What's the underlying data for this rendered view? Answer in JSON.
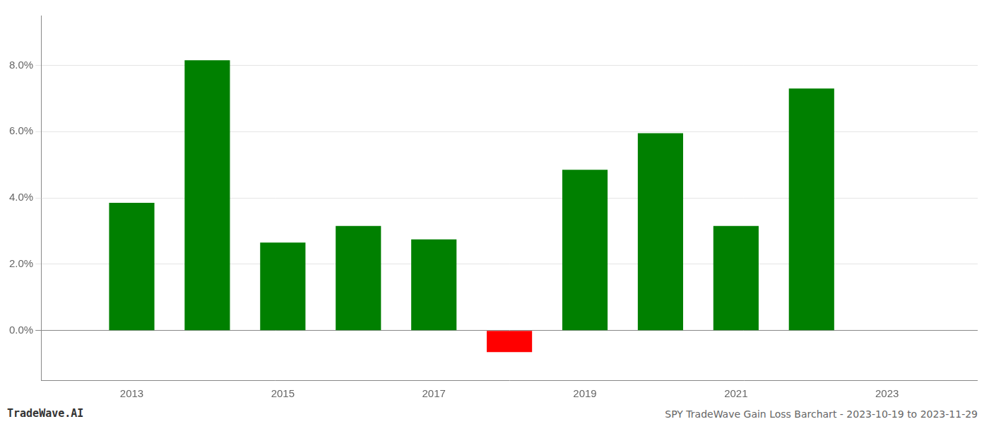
{
  "chart_data": {
    "type": "bar",
    "title": "SPY TradeWave Gain Loss Barchart - 2023-10-19 to 2023-11-29",
    "annotations": [
      "TradeWave.AI"
    ],
    "x": [
      2013,
      2014,
      2015,
      2016,
      2017,
      2018,
      2019,
      2020,
      2021,
      2022
    ],
    "values": [
      0.0385,
      0.0815,
      0.0265,
      0.0315,
      0.0275,
      -0.0065,
      0.0485,
      0.0595,
      0.0315,
      0.073
    ],
    "colors": [
      "#008000",
      "#008000",
      "#008000",
      "#008000",
      "#008000",
      "#ff0000",
      "#008000",
      "#008000",
      "#008000",
      "#008000"
    ],
    "xlim": [
      2011.8,
      2024.2
    ],
    "xticks": [
      2013,
      2015,
      2017,
      2019,
      2021,
      2023
    ],
    "ylim": [
      -0.015,
      0.095
    ],
    "yticks": [
      {
        "value": 0.0,
        "label": "0.0%"
      },
      {
        "value": 0.02,
        "label": "2.0%"
      },
      {
        "value": 0.04,
        "label": "4.0%"
      },
      {
        "value": 0.06,
        "label": "6.0%"
      },
      {
        "value": 0.08,
        "label": "8.0%"
      }
    ],
    "grid": true
  }
}
